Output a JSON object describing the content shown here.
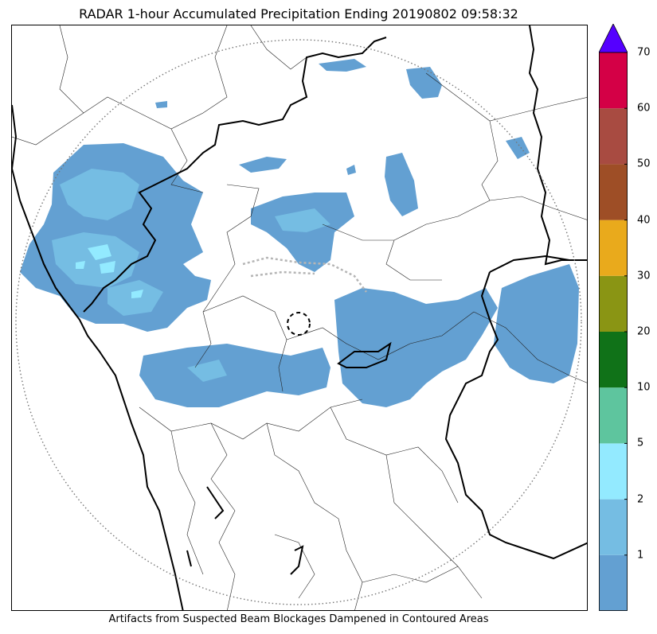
{
  "title": "RADAR 1-hour Accumulated Precipitation Ending 20190802 09:58:32",
  "footer": "Artifacts from Suspected Beam Blockages Dampened in Contoured Areas",
  "colorbar": {
    "colors": [
      "#63a0d2",
      "#75bde3",
      "#93eaff",
      "#5ec59e",
      "#107218",
      "#8a9514",
      "#e9aa1c",
      "#9e4e26",
      "#a84b41",
      "#d40046"
    ],
    "extend_color": "#5500ff",
    "tick_labels": [
      "1",
      "2",
      "5",
      "10",
      "20",
      "30",
      "40",
      "50",
      "60",
      "70"
    ]
  },
  "map": {
    "radar_range_ring": "dotted",
    "radar_site_marker": "dashed-circle",
    "precip_color": "#63a0d2",
    "light_precip_color": "#75bde3",
    "heavy_precip_color": "#93eaff"
  }
}
